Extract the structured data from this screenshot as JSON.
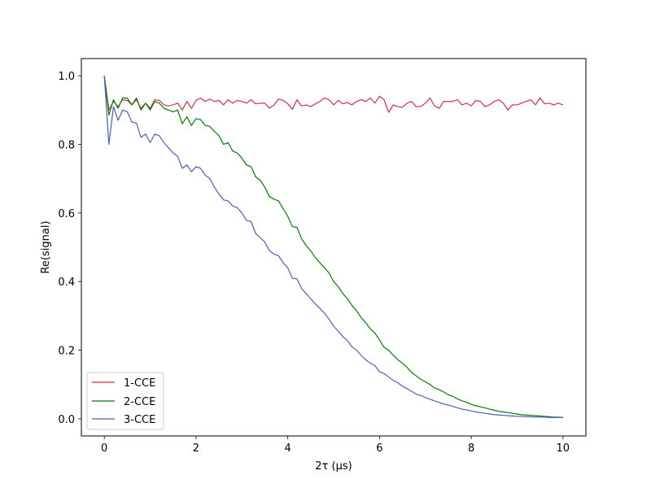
{
  "chart_data": {
    "type": "line",
    "title": "",
    "xlabel": "2τ (μs)",
    "ylabel": "Re(signal)",
    "xlim": [
      -0.5,
      10.5
    ],
    "ylim": [
      -0.05,
      1.05
    ],
    "xticks": [
      0,
      2,
      4,
      6,
      8,
      10
    ],
    "yticks": [
      0.0,
      0.2,
      0.4,
      0.6,
      0.8,
      1.0
    ],
    "xtick_labels": [
      "0",
      "2",
      "4",
      "6",
      "8",
      "10"
    ],
    "ytick_labels": [
      "0.0",
      "0.2",
      "0.4",
      "0.6",
      "0.8",
      "1.0"
    ],
    "grid": false,
    "legend_position": "bottom-left",
    "x": [
      0,
      0.1,
      0.2,
      0.3,
      0.4,
      0.5,
      0.6,
      0.7,
      0.8,
      0.9,
      1.0,
      1.1,
      1.2,
      1.3,
      1.4,
      1.5,
      1.6,
      1.7,
      1.8,
      1.9,
      2.0,
      2.1,
      2.2,
      2.3,
      2.4,
      2.5,
      2.6,
      2.7,
      2.8,
      2.9,
      3.0,
      3.1,
      3.2,
      3.3,
      3.4,
      3.5,
      3.6,
      3.7,
      3.8,
      3.9,
      4.0,
      4.1,
      4.2,
      4.3,
      4.4,
      4.5,
      4.6,
      4.7,
      4.8,
      4.9,
      5.0,
      5.1,
      5.2,
      5.3,
      5.4,
      5.5,
      5.6,
      5.7,
      5.8,
      5.9,
      6.0,
      6.1,
      6.2,
      6.3,
      6.4,
      6.5,
      6.6,
      6.7,
      6.8,
      6.9,
      7.0,
      7.1,
      7.2,
      7.3,
      7.4,
      7.5,
      7.6,
      7.7,
      7.8,
      7.9,
      8.0,
      8.1,
      8.2,
      8.3,
      8.4,
      8.5,
      8.6,
      8.7,
      8.8,
      8.9,
      9.0,
      9.1,
      9.2,
      9.3,
      9.4,
      9.5,
      9.6,
      9.7,
      9.8,
      9.9,
      10.0
    ],
    "series": [
      {
        "name": "1-CCE",
        "color": "#d62f44",
        "values": [
          1.0,
          0.9,
          0.925,
          0.91,
          0.93,
          0.928,
          0.915,
          0.93,
          0.905,
          0.92,
          0.905,
          0.93,
          0.928,
          0.915,
          0.912,
          0.915,
          0.92,
          0.9,
          0.925,
          0.905,
          0.928,
          0.935,
          0.925,
          0.932,
          0.925,
          0.928,
          0.915,
          0.93,
          0.92,
          0.928,
          0.925,
          0.92,
          0.93,
          0.918,
          0.92,
          0.92,
          0.905,
          0.915,
          0.932,
          0.928,
          0.918,
          0.902,
          0.93,
          0.912,
          0.915,
          0.91,
          0.918,
          0.925,
          0.935,
          0.93,
          0.915,
          0.928,
          0.918,
          0.922,
          0.915,
          0.925,
          0.93,
          0.925,
          0.935,
          0.92,
          0.94,
          0.93,
          0.893,
          0.915,
          0.91,
          0.908,
          0.92,
          0.925,
          0.91,
          0.91,
          0.92,
          0.935,
          0.912,
          0.905,
          0.925,
          0.925,
          0.925,
          0.93,
          0.915,
          0.92,
          0.912,
          0.928,
          0.925,
          0.91,
          0.915,
          0.925,
          0.93,
          0.92,
          0.9,
          0.915,
          0.915,
          0.92,
          0.925,
          0.93,
          0.915,
          0.935,
          0.918,
          0.92,
          0.915,
          0.92,
          0.915
        ]
      },
      {
        "name": "2-CCE",
        "color": "#008000",
        "values": [
          1.0,
          0.885,
          0.93,
          0.905,
          0.935,
          0.935,
          0.915,
          0.935,
          0.9,
          0.92,
          0.9,
          0.925,
          0.92,
          0.905,
          0.9,
          0.895,
          0.9,
          0.86,
          0.88,
          0.855,
          0.875,
          0.872,
          0.855,
          0.852,
          0.838,
          0.825,
          0.8,
          0.805,
          0.78,
          0.775,
          0.76,
          0.74,
          0.735,
          0.705,
          0.695,
          0.675,
          0.648,
          0.64,
          0.635,
          0.612,
          0.59,
          0.56,
          0.558,
          0.525,
          0.505,
          0.49,
          0.47,
          0.455,
          0.44,
          0.425,
          0.4,
          0.385,
          0.365,
          0.35,
          0.33,
          0.315,
          0.295,
          0.28,
          0.262,
          0.25,
          0.23,
          0.208,
          0.2,
          0.185,
          0.172,
          0.162,
          0.15,
          0.135,
          0.125,
          0.115,
          0.108,
          0.1,
          0.09,
          0.085,
          0.078,
          0.07,
          0.065,
          0.058,
          0.052,
          0.048,
          0.042,
          0.038,
          0.035,
          0.032,
          0.028,
          0.025,
          0.022,
          0.02,
          0.018,
          0.016,
          0.014,
          0.012,
          0.011,
          0.01,
          0.009,
          0.008,
          0.007,
          0.006,
          0.005,
          0.005,
          0.004
        ]
      },
      {
        "name": "3-CCE",
        "color": "#4a5fc1",
        "values": [
          1.0,
          0.8,
          0.91,
          0.87,
          0.9,
          0.895,
          0.865,
          0.862,
          0.82,
          0.83,
          0.805,
          0.83,
          0.825,
          0.805,
          0.79,
          0.775,
          0.765,
          0.73,
          0.74,
          0.72,
          0.735,
          0.73,
          0.71,
          0.7,
          0.675,
          0.655,
          0.638,
          0.635,
          0.62,
          0.615,
          0.6,
          0.578,
          0.575,
          0.54,
          0.528,
          0.515,
          0.49,
          0.48,
          0.475,
          0.455,
          0.44,
          0.41,
          0.408,
          0.38,
          0.365,
          0.35,
          0.335,
          0.322,
          0.308,
          0.29,
          0.27,
          0.255,
          0.24,
          0.228,
          0.21,
          0.2,
          0.185,
          0.172,
          0.162,
          0.155,
          0.137,
          0.132,
          0.122,
          0.112,
          0.105,
          0.095,
          0.088,
          0.08,
          0.072,
          0.068,
          0.062,
          0.057,
          0.052,
          0.048,
          0.043,
          0.04,
          0.036,
          0.032,
          0.028,
          0.026,
          0.023,
          0.02,
          0.018,
          0.016,
          0.014,
          0.012,
          0.011,
          0.01,
          0.009,
          0.008,
          0.007,
          0.007,
          0.006,
          0.006,
          0.005,
          0.005,
          0.005,
          0.004,
          0.004,
          0.004,
          0.004
        ]
      }
    ]
  }
}
